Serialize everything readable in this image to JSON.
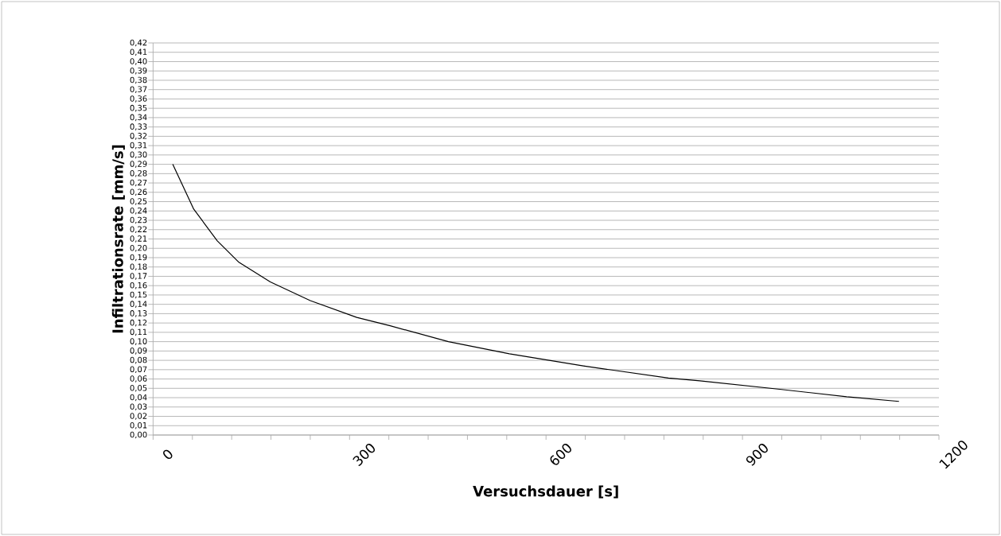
{
  "chart_data": {
    "type": "line",
    "xlabel": "Versuchsdauer [s]",
    "ylabel": "Infiltrationsrate [mm/s]",
    "x": [
      30,
      62,
      98,
      131,
      179,
      240,
      311,
      362,
      451,
      544,
      657,
      787,
      835,
      957,
      1059,
      1139
    ],
    "series": [
      {
        "color": "#000000",
        "values": [
          0.29,
          0.242,
          0.208,
          0.185,
          0.164,
          0.144,
          0.126,
          0.117,
          0.1,
          0.087,
          0.074,
          0.061,
          0.058,
          0.049,
          0.041,
          0.036
        ]
      }
    ],
    "xlim": [
      0,
      1200
    ],
    "xticks": [
      0,
      {
        "value": 60,
        "label": null
      },
      {
        "value": 120,
        "label": null
      },
      {
        "value": 180,
        "label": null
      },
      {
        "value": 240,
        "label": null
      },
      300,
      {
        "value": 360,
        "label": null
      },
      {
        "value": 420,
        "label": null
      },
      {
        "value": 480,
        "label": null
      },
      {
        "value": 540,
        "label": null
      },
      600,
      {
        "value": 660,
        "label": null
      },
      {
        "value": 720,
        "label": null
      },
      {
        "value": 780,
        "label": null
      },
      {
        "value": 840,
        "label": null
      },
      900,
      {
        "value": 960,
        "label": null
      },
      {
        "value": 1020,
        "label": null
      },
      {
        "value": 1080,
        "label": null
      },
      {
        "value": 1140,
        "label": null
      },
      1200
    ],
    "ylim": [
      0,
      0.42
    ],
    "yticks": [
      {
        "value": 0,
        "label": "0,00"
      },
      {
        "value": 0.01,
        "label": "0,01"
      },
      {
        "value": 0.02,
        "label": "0,02"
      },
      {
        "value": 0.03,
        "label": "0,03"
      },
      {
        "value": 0.04,
        "label": "0,04"
      },
      {
        "value": 0.05,
        "label": "0,05"
      },
      {
        "value": 0.06,
        "label": "0,06"
      },
      {
        "value": 0.07,
        "label": "0,07"
      },
      {
        "value": 0.08,
        "label": "0,08"
      },
      {
        "value": 0.09,
        "label": "0,09"
      },
      {
        "value": 0.1,
        "label": "0,10"
      },
      {
        "value": 0.11,
        "label": "0,11"
      },
      {
        "value": 0.12,
        "label": "0,12"
      },
      {
        "value": 0.13,
        "label": "0,13"
      },
      {
        "value": 0.14,
        "label": "0,14"
      },
      {
        "value": 0.15,
        "label": "0,15"
      },
      {
        "value": 0.16,
        "label": "0,16"
      },
      {
        "value": 0.17,
        "label": "0,17"
      },
      {
        "value": 0.18,
        "label": "0,18"
      },
      {
        "value": 0.19,
        "label": "0,19"
      },
      {
        "value": 0.2,
        "label": "0,20"
      },
      {
        "value": 0.21,
        "label": "0,21"
      },
      {
        "value": 0.22,
        "label": "0,22"
      },
      {
        "value": 0.23,
        "label": "0,23"
      },
      {
        "value": 0.24,
        "label": "0,24"
      },
      {
        "value": 0.25,
        "label": "0,25"
      },
      {
        "value": 0.26,
        "label": "0,26"
      },
      {
        "value": 0.27,
        "label": "0,27"
      },
      {
        "value": 0.28,
        "label": "0,28"
      },
      {
        "value": 0.29,
        "label": "0,29"
      },
      {
        "value": 0.3,
        "label": "0,30"
      },
      {
        "value": 0.31,
        "label": "0,31"
      },
      {
        "value": 0.32,
        "label": "0,32"
      },
      {
        "value": 0.33,
        "label": "0,33"
      },
      {
        "value": 0.34,
        "label": "0,34"
      },
      {
        "value": 0.35,
        "label": "0,35"
      },
      {
        "value": 0.36,
        "label": "0,36"
      },
      {
        "value": 0.37,
        "label": "0,37"
      },
      {
        "value": 0.38,
        "label": "0,38"
      },
      {
        "value": 0.39,
        "label": "0,39"
      },
      {
        "value": 0.4,
        "label": "0,40"
      },
      {
        "value": 0.41,
        "label": "0,41"
      },
      {
        "value": 0.42,
        "label": "0,42"
      }
    ],
    "grid": "y",
    "line_style": "solid"
  }
}
